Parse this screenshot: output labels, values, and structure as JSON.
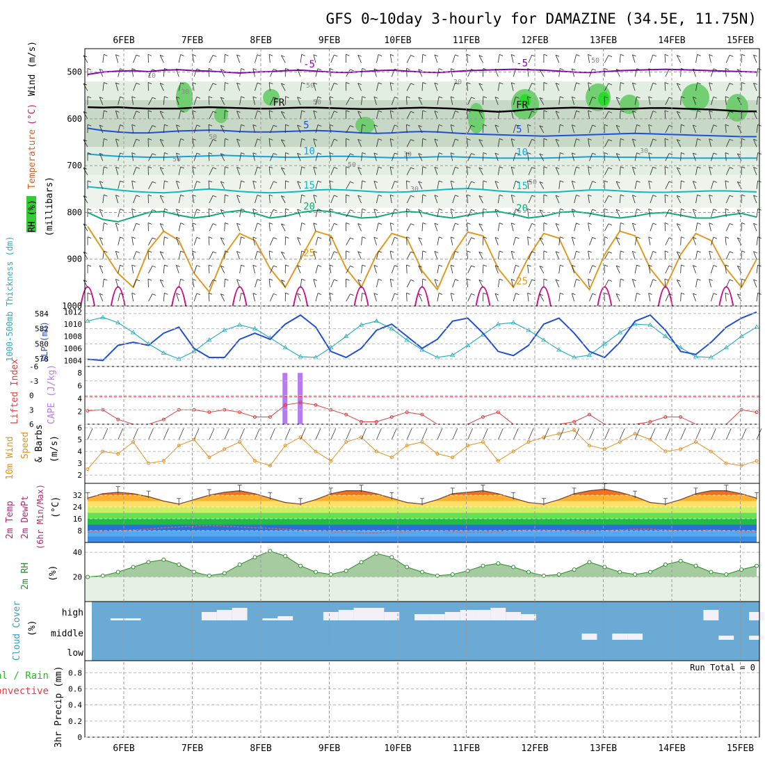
{
  "title": "GFS 0~10day 3-hourly for DAMAZINE (34.5E, 11.75N)",
  "date_labels": [
    "6FEB",
    "7FEB",
    "8FEB",
    "9FEB",
    "10FEB",
    "11FEB",
    "12FEB",
    "13FEB",
    "14FEB",
    "15FEB"
  ],
  "chart_data": [
    {
      "type": "heatmap",
      "panel": "upper-air",
      "ylabel_parts": [
        "RH (%)",
        "Temperature",
        "(°C)",
        "Wind",
        "(m/s)",
        "(millibars)"
      ],
      "yticks": [
        500,
        600,
        700,
        800,
        900,
        1000
      ],
      "ylim": [
        1000,
        450
      ],
      "y_scale": "pressure (inverted)",
      "temperature_contours": [
        {
          "label": "-5",
          "color": "#8800aa",
          "p": [
            505,
            500,
            498,
            497,
            499,
            496,
            495,
            497,
            498,
            500,
            502,
            500,
            499,
            497,
            496,
            498,
            500,
            501,
            499,
            497,
            496,
            498,
            500,
            501,
            499,
            497,
            496,
            495,
            494,
            495,
            496,
            498,
            500,
            501,
            499,
            497,
            496,
            495,
            494,
            495,
            496,
            497,
            498,
            499,
            500
          ]
        },
        {
          "label": "5",
          "color": "#1f4fd8",
          "p": [
            620,
            625,
            628,
            630,
            630,
            628,
            626,
            625,
            624,
            625,
            627,
            628,
            628,
            627,
            626,
            625,
            626,
            628,
            630,
            631,
            630,
            628,
            627,
            628,
            630,
            632,
            633,
            634,
            635,
            636,
            637,
            636,
            635,
            634,
            633,
            632,
            631,
            632,
            633,
            634,
            635,
            636,
            637,
            638,
            638
          ]
        },
        {
          "label": "10",
          "color": "#1a9fd6",
          "p": [
            675,
            678,
            680,
            681,
            682,
            682,
            681,
            680,
            679,
            678,
            679,
            680,
            681,
            682,
            682,
            681,
            680,
            680,
            681,
            682,
            683,
            683,
            682,
            681,
            681,
            682,
            683,
            684,
            684,
            684,
            684,
            683,
            682,
            681,
            681,
            682,
            682,
            683,
            683,
            684,
            684,
            684,
            684,
            684,
            684
          ]
        },
        {
          "label": "15",
          "color": "#10b8c0",
          "p": [
            745,
            748,
            752,
            755,
            757,
            758,
            756,
            752,
            750,
            752,
            755,
            757,
            758,
            757,
            755,
            752,
            751,
            752,
            754,
            756,
            757,
            756,
            754,
            752,
            750,
            749,
            751,
            754,
            756,
            757,
            757,
            756,
            754,
            752,
            752,
            754,
            756,
            757,
            757,
            756,
            755,
            754,
            754,
            755,
            756
          ]
        },
        {
          "label": "20",
          "color": "#10a878",
          "p": [
            800,
            815,
            820,
            810,
            800,
            798,
            806,
            812,
            808,
            800,
            796,
            802,
            812,
            808,
            800,
            796,
            798,
            806,
            812,
            810,
            802,
            798,
            800,
            808,
            812,
            806,
            800,
            798,
            804,
            812,
            808,
            800,
            798,
            802,
            808,
            812,
            808,
            802,
            800,
            806,
            812,
            812,
            806,
            802,
            810
          ]
        },
        {
          "label": "25",
          "color": "#e09a20",
          "p": [
            830,
            880,
            930,
            960,
            880,
            840,
            860,
            930,
            970,
            890,
            845,
            860,
            920,
            960,
            900,
            840,
            850,
            920,
            960,
            890,
            845,
            855,
            925,
            965,
            890,
            842,
            850,
            920,
            960,
            895,
            845,
            855,
            925,
            965,
            890,
            840,
            850,
            920,
            960,
            890,
            845,
            860,
            920,
            960,
            900
          ]
        },
        {
          "label": "FR",
          "color": "#000000",
          "p": [
            575,
            576,
            575,
            577,
            578,
            578,
            578,
            576,
            575,
            576,
            577,
            578,
            578,
            577,
            576,
            576,
            577,
            578,
            579,
            579,
            578,
            577,
            576,
            577,
            578,
            580,
            583,
            585,
            583,
            580,
            578,
            577,
            576,
            577,
            578,
            579,
            578,
            577,
            577,
            578,
            579,
            580,
            582,
            584,
            584
          ]
        }
      ],
      "rh_contour_labels": [
        "10",
        "30",
        "50",
        "30",
        "30",
        "50",
        "30",
        "50",
        "50",
        "50",
        "50",
        "30",
        "50"
      ]
    },
    {
      "type": "line",
      "panel": "thickness-slp",
      "ylabel_left": "1000-500mb Thickness (dm)",
      "ylabel_right": "SLP (mb)",
      "y1ticks": [
        578,
        580,
        582,
        584
      ],
      "y2ticks": [
        1004,
        1006,
        1008,
        1010,
        1012
      ],
      "series": [
        {
          "name": "1000-500mb Thickness (dm)",
          "color": "#2ab0c0",
          "axis": "left",
          "values": [
            583.0,
            583.5,
            582.8,
            581.5,
            580.0,
            578.8,
            578.0,
            579.0,
            580.5,
            581.8,
            582.5,
            582.0,
            580.8,
            579.5,
            578.3,
            578.2,
            579.5,
            581.0,
            582.5,
            583.0,
            582.0,
            580.5,
            579.2,
            578.2,
            578.5,
            579.8,
            581.2,
            582.6,
            582.8,
            581.8,
            580.5,
            579.2,
            578.2,
            578.5,
            580.0,
            581.5,
            582.6,
            582.5,
            581.0,
            579.5,
            578.3,
            578.2,
            579.5,
            581.0,
            582.2
          ]
        },
        {
          "name": "SLP (mb)",
          "color": "#1f4fd8",
          "axis": "right",
          "values": [
            1004.2,
            1004.0,
            1006.5,
            1007.0,
            1006.5,
            1008.5,
            1009.5,
            1006.0,
            1004.5,
            1004.5,
            1007.5,
            1008.5,
            1007.5,
            1010.0,
            1011.5,
            1009.5,
            1005.5,
            1004.5,
            1006.0,
            1009.0,
            1010.0,
            1008.0,
            1006.0,
            1007.5,
            1010.5,
            1011.0,
            1008.5,
            1005.5,
            1004.8,
            1006.5,
            1010.0,
            1011.0,
            1008.5,
            1005.5,
            1004.5,
            1007.0,
            1010.5,
            1011.5,
            1009.0,
            1005.5,
            1005.0,
            1007.0,
            1009.5,
            1011.0,
            1012.0
          ]
        }
      ]
    },
    {
      "type": "line",
      "panel": "lifted-index-cape",
      "ylabel_left": "Lifted Index",
      "ylabel_right": "CAPE (J/kg)",
      "y1ticks": [
        -6,
        -3,
        0,
        3,
        6
      ],
      "y2ticks": [
        2,
        4,
        6,
        8
      ],
      "cape_bars": [
        {
          "index": 13,
          "value": 8
        },
        {
          "index": 14,
          "value": 8
        }
      ],
      "series": [
        {
          "name": "Lifted Index",
          "color": "#e04040",
          "values": [
            3.2,
            3.0,
            5.0,
            6.2,
            6.2,
            5.0,
            3.0,
            3.0,
            3.5,
            3.0,
            3.5,
            4.5,
            4.5,
            2.0,
            1.5,
            2.0,
            3.0,
            4.0,
            5.5,
            5.5,
            4.5,
            3.5,
            4.0,
            6.0,
            6.2,
            6.2,
            4.5,
            3.5,
            6.2,
            6.2,
            6.2,
            6.2,
            5.5,
            4.0,
            6.2,
            6.2,
            6.2,
            5.5,
            4.5,
            4.5,
            6.2,
            6.2,
            6.2,
            3.0,
            3.5
          ]
        }
      ]
    },
    {
      "type": "line",
      "panel": "10m-wind",
      "ylabel_parts": [
        "10m Wind",
        "Speed",
        "& Barbs",
        "(m/s)"
      ],
      "yticks": [
        2,
        3,
        4,
        5,
        6
      ],
      "series": [
        {
          "name": "10m Wind Speed",
          "color": "#e8901c",
          "values": [
            2.5,
            4.0,
            3.8,
            4.8,
            3.0,
            3.2,
            4.5,
            5.0,
            3.5,
            4.2,
            4.8,
            3.2,
            2.8,
            4.5,
            5.2,
            4.0,
            3.2,
            4.8,
            5.2,
            4.0,
            3.5,
            4.5,
            4.8,
            3.8,
            3.5,
            4.5,
            4.8,
            3.2,
            4.0,
            4.8,
            5.2,
            5.5,
            5.8,
            4.5,
            4.2,
            4.8,
            5.5,
            5.0,
            4.0,
            4.2,
            4.8,
            4.0,
            3.0,
            2.8,
            3.2
          ]
        }
      ]
    },
    {
      "type": "area",
      "panel": "2m-temperature",
      "ylabel_parts": [
        "2m Temp",
        "2m DewPt",
        "(6hr Min/Max)",
        "(°C)"
      ],
      "yticks": [
        8,
        16,
        24,
        32
      ],
      "series": [
        {
          "name": "2m Temp",
          "values": [
            30,
            33,
            34,
            33,
            31,
            28,
            26,
            29,
            32,
            34,
            35,
            33,
            30,
            27,
            26,
            29,
            33,
            35,
            35,
            33,
            30,
            27,
            26,
            29,
            33,
            34,
            35,
            33,
            30,
            27,
            26,
            29,
            33,
            35,
            36,
            34,
            31,
            27,
            26,
            29,
            33,
            35,
            35,
            33,
            30
          ]
        },
        {
          "name": "2m DewPt",
          "values": [
            7,
            7.5,
            8,
            8.5,
            9,
            10,
            10.5,
            11,
            11.5,
            11,
            10.5,
            10,
            9.5,
            9,
            8.5,
            8,
            7.5,
            7,
            6.5,
            6.5,
            7,
            7.5,
            8,
            8,
            7.5,
            7,
            7,
            7.5,
            8,
            8.5,
            8.5,
            8,
            7.5,
            7.5,
            8,
            8.5,
            9,
            9,
            8.5,
            8,
            8,
            8.5,
            8,
            7.5,
            7
          ]
        }
      ]
    },
    {
      "type": "area",
      "panel": "2m-rh",
      "ylabel_parts": [
        "2m RH",
        "(%)"
      ],
      "yticks": [
        20,
        40
      ],
      "series": [
        {
          "name": "2m RH",
          "color": "#5aa05a",
          "values": [
            20,
            21,
            24,
            28,
            32,
            34,
            30,
            24,
            21,
            23,
            30,
            36,
            41,
            37,
            29,
            24,
            22,
            25,
            32,
            39,
            36,
            28,
            24,
            21,
            22,
            25,
            29,
            31,
            28,
            24,
            21,
            22,
            26,
            32,
            28,
            24,
            22,
            24,
            30,
            33,
            29,
            24,
            22,
            26,
            29
          ]
        }
      ]
    },
    {
      "type": "bar",
      "panel": "cloud-cover",
      "ylabel_parts": [
        "Cloud Cover",
        "(%)"
      ],
      "levels": [
        "high",
        "middle",
        "low"
      ],
      "series": [
        {
          "name": "high",
          "values": [
            0,
            0,
            5,
            5,
            0,
            0,
            0,
            0,
            20,
            25,
            30,
            0,
            5,
            10,
            0,
            0,
            20,
            25,
            30,
            30,
            20,
            0,
            15,
            15,
            20,
            25,
            25,
            30,
            20,
            15,
            0,
            0,
            0,
            0,
            0,
            0,
            0,
            0,
            0,
            0,
            0,
            25,
            0,
            0,
            20
          ]
        },
        {
          "name": "middle",
          "values": [
            0,
            0,
            0,
            0,
            0,
            0,
            0,
            0,
            0,
            0,
            0,
            0,
            0,
            0,
            0,
            0,
            0,
            0,
            0,
            0,
            0,
            0,
            0,
            0,
            0,
            0,
            0,
            0,
            0,
            0,
            0,
            0,
            0,
            15,
            0,
            15,
            15,
            0,
            0,
            0,
            0,
            0,
            10,
            0,
            10
          ]
        },
        {
          "name": "low",
          "values": [
            0,
            0,
            0,
            0,
            0,
            0,
            0,
            0,
            0,
            0,
            0,
            0,
            0,
            0,
            0,
            0,
            0,
            0,
            0,
            0,
            0,
            0,
            0,
            0,
            0,
            0,
            0,
            0,
            0,
            0,
            0,
            0,
            0,
            0,
            0,
            0,
            0,
            0,
            0,
            0,
            0,
            0,
            0,
            0,
            0
          ]
        }
      ]
    },
    {
      "type": "bar",
      "panel": "precipitation",
      "ylabel_parts": [
        "Total / Rain",
        "Convective",
        "3hr Precip (mm)"
      ],
      "yticks": [
        0,
        0.2,
        0.4,
        0.6,
        0.8
      ],
      "annotation": "Run Total = 0",
      "series": [
        {
          "name": "Total / Rain",
          "values": [
            0,
            0,
            0,
            0,
            0,
            0,
            0,
            0,
            0,
            0,
            0,
            0,
            0,
            0,
            0,
            0,
            0,
            0,
            0,
            0,
            0,
            0,
            0,
            0,
            0,
            0,
            0,
            0,
            0,
            0,
            0,
            0,
            0,
            0,
            0,
            0,
            0,
            0,
            0,
            0,
            0,
            0,
            0,
            0,
            0
          ]
        },
        {
          "name": "Convective",
          "values": [
            0,
            0,
            0,
            0,
            0,
            0,
            0,
            0,
            0,
            0,
            0,
            0,
            0,
            0,
            0,
            0,
            0,
            0,
            0,
            0,
            0,
            0,
            0,
            0,
            0,
            0,
            0,
            0,
            0,
            0,
            0,
            0,
            0,
            0,
            0,
            0,
            0,
            0,
            0,
            0,
            0,
            0,
            0,
            0,
            0
          ]
        }
      ]
    }
  ]
}
